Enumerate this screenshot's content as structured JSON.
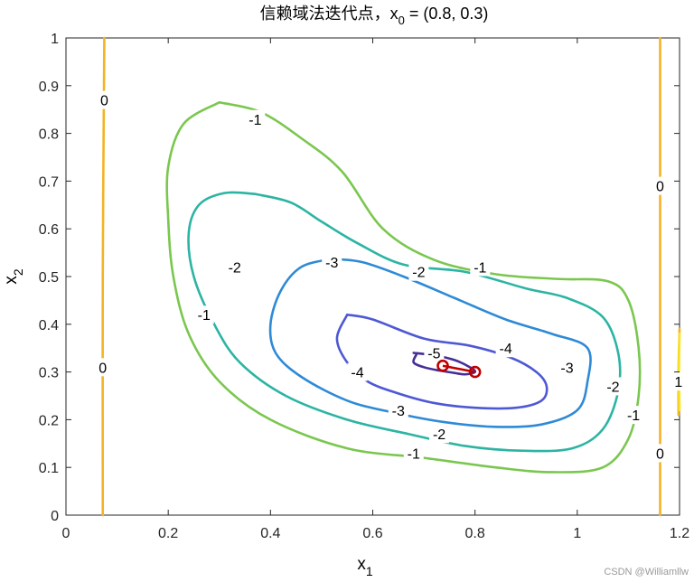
{
  "chart_data": {
    "type": "contour",
    "title": "信赖域法迭代点，x",
    "title_sub": "0",
    "title_tail": " = (0.8, 0.3)",
    "xlabel": "x",
    "xlabel_sub": "1",
    "ylabel": "x",
    "ylabel_sub": "2",
    "xlim": [
      0,
      1.2
    ],
    "ylim": [
      0,
      1
    ],
    "xticks": [
      "0",
      "0.2",
      "0.4",
      "0.6",
      "0.8",
      "1",
      "1.2"
    ],
    "yticks": [
      "0",
      "0.1",
      "0.2",
      "0.3",
      "0.4",
      "0.5",
      "0.6",
      "0.7",
      "0.8",
      "0.9",
      "1"
    ],
    "contours": [
      {
        "level": "-1",
        "color": "#7ac74f",
        "curves": [
          [
            [
              0.3,
              0.865
            ],
            [
              0.38,
              0.845
            ],
            [
              0.46,
              0.79
            ],
            [
              0.54,
              0.72
            ],
            [
              0.62,
              0.6
            ],
            [
              0.72,
              0.535
            ],
            [
              0.84,
              0.505
            ],
            [
              0.96,
              0.495
            ],
            [
              1.06,
              0.49
            ],
            [
              1.1,
              0.45
            ],
            [
              1.12,
              0.35
            ],
            [
              1.12,
              0.25
            ],
            [
              1.1,
              0.16
            ],
            [
              1.05,
              0.1
            ],
            [
              0.95,
              0.09
            ],
            [
              0.84,
              0.1
            ],
            [
              0.7,
              0.12
            ],
            [
              0.55,
              0.14
            ],
            [
              0.4,
              0.2
            ],
            [
              0.3,
              0.28
            ],
            [
              0.24,
              0.38
            ],
            [
              0.21,
              0.5
            ],
            [
              0.2,
              0.62
            ],
            [
              0.2,
              0.73
            ],
            [
              0.23,
              0.82
            ],
            [
              0.3,
              0.865
            ]
          ]
        ]
      },
      {
        "level": "-2",
        "color": "#2cb4a3",
        "curves": [
          [
            [
              0.37,
              0.673
            ],
            [
              0.44,
              0.655
            ],
            [
              0.5,
              0.615
            ],
            [
              0.57,
              0.57
            ],
            [
              0.66,
              0.525
            ],
            [
              0.78,
              0.51
            ],
            [
              0.9,
              0.475
            ],
            [
              0.98,
              0.455
            ],
            [
              1.05,
              0.415
            ],
            [
              1.08,
              0.34
            ],
            [
              1.08,
              0.26
            ],
            [
              1.05,
              0.18
            ],
            [
              0.99,
              0.14
            ],
            [
              0.89,
              0.135
            ],
            [
              0.78,
              0.145
            ],
            [
              0.67,
              0.17
            ],
            [
              0.55,
              0.2
            ],
            [
              0.43,
              0.25
            ],
            [
              0.34,
              0.32
            ],
            [
              0.29,
              0.4
            ],
            [
              0.25,
              0.5
            ],
            [
              0.24,
              0.59
            ],
            [
              0.26,
              0.65
            ],
            [
              0.31,
              0.675
            ],
            [
              0.37,
              0.673
            ]
          ]
        ]
      },
      {
        "level": "-3",
        "color": "#2e8ad6",
        "curves": [
          [
            [
              0.52,
              0.537
            ],
            [
              0.58,
              0.53
            ],
            [
              0.66,
              0.5
            ],
            [
              0.76,
              0.455
            ],
            [
              0.86,
              0.41
            ],
            [
              0.95,
              0.38
            ],
            [
              1.02,
              0.35
            ],
            [
              1.02,
              0.28
            ],
            [
              1.0,
              0.22
            ],
            [
              0.93,
              0.19
            ],
            [
              0.84,
              0.185
            ],
            [
              0.74,
              0.195
            ],
            [
              0.64,
              0.215
            ],
            [
              0.55,
              0.24
            ],
            [
              0.46,
              0.29
            ],
            [
              0.41,
              0.34
            ],
            [
              0.4,
              0.4
            ],
            [
              0.42,
              0.47
            ],
            [
              0.46,
              0.52
            ],
            [
              0.52,
              0.537
            ]
          ]
        ]
      },
      {
        "level": "-4",
        "color": "#4e58d4",
        "curves": [
          [
            [
              0.55,
              0.42
            ],
            [
              0.6,
              0.41
            ],
            [
              0.7,
              0.37
            ],
            [
              0.79,
              0.355
            ],
            [
              0.87,
              0.33
            ],
            [
              0.92,
              0.3
            ],
            [
              0.94,
              0.27
            ],
            [
              0.93,
              0.24
            ],
            [
              0.88,
              0.225
            ],
            [
              0.8,
              0.225
            ],
            [
              0.72,
              0.235
            ],
            [
              0.65,
              0.255
            ],
            [
              0.59,
              0.28
            ],
            [
              0.55,
              0.32
            ],
            [
              0.53,
              0.37
            ],
            [
              0.55,
              0.42
            ]
          ]
        ]
      },
      {
        "level": "-5",
        "color": "#462e96",
        "curves": [
          [
            [
              0.68,
              0.34
            ],
            [
              0.72,
              0.335
            ],
            [
              0.76,
              0.325
            ],
            [
              0.79,
              0.31
            ],
            [
              0.8,
              0.3
            ],
            [
              0.78,
              0.295
            ],
            [
              0.76,
              0.298
            ],
            [
              0.73,
              0.303
            ],
            [
              0.7,
              0.31
            ],
            [
              0.68,
              0.32
            ],
            [
              0.685,
              0.336
            ]
          ]
        ]
      },
      {
        "level": "0",
        "color": "#f4b324",
        "curves": [
          [
            [
              0.075,
              1
            ],
            [
              0.072,
              0.5
            ],
            [
              0.072,
              0
            ]
          ],
          [
            [
              1.162,
              1
            ],
            [
              1.162,
              0.5
            ],
            [
              1.162,
              0
            ]
          ],
          [
            [
              1.2,
              0.39
            ],
            [
              1.198,
              0.3
            ],
            [
              1.198,
              0.21
            ]
          ]
        ]
      },
      {
        "level": "1",
        "color": "#f6e71d",
        "curves": [
          [
            [
              1.2,
              0.38
            ],
            [
              1.199,
              0.3
            ],
            [
              1.2,
              0.22
            ]
          ]
        ]
      }
    ],
    "contour_labels": [
      {
        "text": "-1",
        "x": 0.37,
        "y": 0.83
      },
      {
        "text": "-1",
        "x": 0.81,
        "y": 0.52
      },
      {
        "text": "-1",
        "x": 0.27,
        "y": 0.42
      },
      {
        "text": "-1",
        "x": 0.68,
        "y": 0.13
      },
      {
        "text": "-1",
        "x": 1.11,
        "y": 0.21
      },
      {
        "text": "-2",
        "x": 0.33,
        "y": 0.52
      },
      {
        "text": "-2",
        "x": 0.69,
        "y": 0.51
      },
      {
        "text": "-2",
        "x": 0.73,
        "y": 0.17
      },
      {
        "text": "-2",
        "x": 1.07,
        "y": 0.27
      },
      {
        "text": "-3",
        "x": 0.52,
        "y": 0.53
      },
      {
        "text": "-3",
        "x": 0.65,
        "y": 0.22
      },
      {
        "text": "-3",
        "x": 0.98,
        "y": 0.31
      },
      {
        "text": "-4",
        "x": 0.57,
        "y": 0.3
      },
      {
        "text": "-4",
        "x": 0.86,
        "y": 0.35
      },
      {
        "text": "-5",
        "x": 0.72,
        "y": 0.34
      },
      {
        "text": "0",
        "x": 0.075,
        "y": 0.87
      },
      {
        "text": "0",
        "x": 0.072,
        "y": 0.31
      },
      {
        "text": "0",
        "x": 1.162,
        "y": 0.69
      },
      {
        "text": "0",
        "x": 1.162,
        "y": 0.13
      },
      {
        "text": "1",
        "x": 1.198,
        "y": 0.28
      }
    ],
    "iterates": {
      "color": "#c00000",
      "x": [
        0.8,
        0.737
      ],
      "y": [
        0.3,
        0.313
      ]
    },
    "grid": false
  },
  "watermark": "CSDN @Williamllw"
}
